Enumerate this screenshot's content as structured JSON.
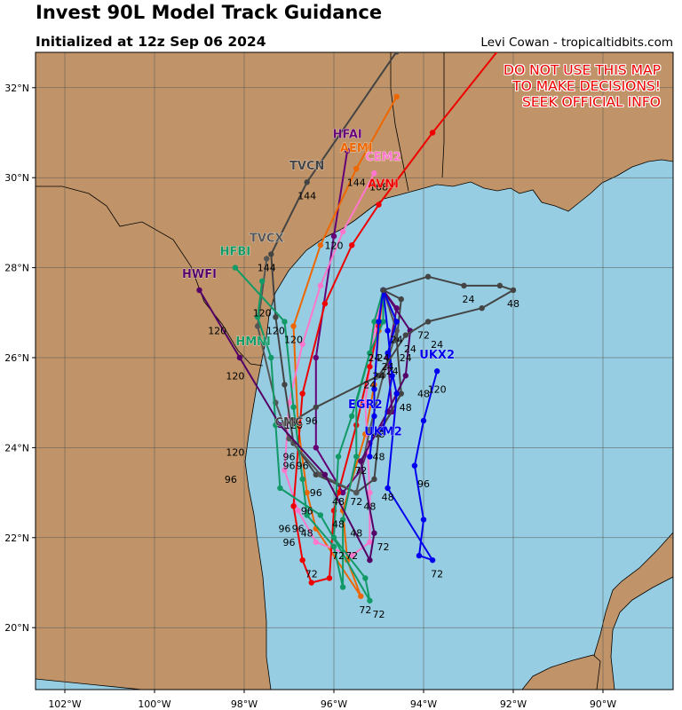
{
  "title": "Invest 90L Model Track Guidance",
  "subtitle": "Initialized at 12z Sep 06 2024",
  "credit": "Levi Cowan - tropicaltidbits.com",
  "warning": [
    "DO NOT USE THIS MAP",
    "TO MAKE DECISIONS!",
    "SEEK OFFICIAL INFO"
  ],
  "colors": {
    "land": "#c09468",
    "water": "#96cde2",
    "grid": "#555555"
  },
  "lat_labels": [
    {
      "lat": 32,
      "text": "32°N"
    },
    {
      "lat": 30,
      "text": "30°N"
    },
    {
      "lat": 28,
      "text": "28°N"
    },
    {
      "lat": 26,
      "text": "26°N"
    },
    {
      "lat": 24,
      "text": "24°N"
    },
    {
      "lat": 22,
      "text": "22°N"
    },
    {
      "lat": 20,
      "text": "20°N"
    }
  ],
  "lon_labels": [
    {
      "lon": -102,
      "text": "102°W"
    },
    {
      "lon": -100,
      "text": "100°W"
    },
    {
      "lon": -98,
      "text": "98°W"
    },
    {
      "lon": -96,
      "text": "96°W"
    },
    {
      "lon": -94,
      "text": "94°W"
    },
    {
      "lon": -92,
      "text": "92°W"
    },
    {
      "lon": -90,
      "text": "90°W"
    }
  ],
  "models": [
    {
      "name": "HFAI",
      "color": "#660077",
      "label_at": [
        30.8,
        -95.7
      ],
      "track": [
        [
          27.5,
          -94.9
        ],
        [
          27.1,
          -94.6
        ],
        [
          26.0,
          -94.8
        ],
        [
          24.8,
          -94.7
        ],
        [
          24.1,
          -95.2
        ],
        [
          23.5,
          -95.4
        ],
        [
          23.0,
          -95.8
        ],
        [
          24.0,
          -96.4
        ],
        [
          26.0,
          -96.4
        ],
        [
          28.7,
          -96.0
        ],
        [
          30.6,
          -95.7
        ]
      ],
      "hour_labels": []
    },
    {
      "name": "AEMI",
      "color": "#ee6600",
      "label_at": [
        30.5,
        -95.5
      ],
      "track": [
        [
          27.5,
          -94.9
        ],
        [
          26.6,
          -95.0
        ],
        [
          25.4,
          -95.1
        ],
        [
          24.3,
          -95.3
        ],
        [
          22.6,
          -95.8
        ],
        [
          21.5,
          -95.7
        ],
        [
          20.7,
          -95.4
        ],
        [
          22.2,
          -96.4
        ],
        [
          23.0,
          -96.6
        ],
        [
          24.5,
          -96.8
        ],
        [
          26.7,
          -96.9
        ],
        [
          28.5,
          -96.3
        ],
        [
          30.2,
          -95.5
        ],
        [
          31.8,
          -94.6
        ]
      ],
      "hour_labels": [
        {
          "h": "144",
          "at": [
            29.9,
            -95.5
          ]
        },
        {
          "h": "120",
          "at": [
            28.5,
            -96.0
          ]
        }
      ]
    },
    {
      "name": "CEM2",
      "color": "#ff77cc",
      "label_at": [
        30.3,
        -94.9
      ],
      "track": [
        [
          27.5,
          -94.9
        ],
        [
          26.6,
          -95.1
        ],
        [
          25.0,
          -95.3
        ],
        [
          23.0,
          -95.2
        ],
        [
          21.9,
          -95.2
        ],
        [
          21.6,
          -95.6
        ],
        [
          21.9,
          -96.4
        ],
        [
          22.6,
          -96.8
        ],
        [
          23.5,
          -97.1
        ],
        [
          25.0,
          -97.0
        ],
        [
          26.3,
          -96.7
        ],
        [
          27.6,
          -96.3
        ],
        [
          28.8,
          -95.8
        ],
        [
          30.1,
          -95.1
        ]
      ],
      "hour_labels": [
        {
          "h": "168",
          "at": [
            29.8,
            -95.0
          ]
        }
      ]
    },
    {
      "name": "AVNI",
      "color": "#ee0000",
      "label_at": [
        29.7,
        -94.9
      ],
      "track": [
        [
          27.5,
          -94.9
        ],
        [
          26.7,
          -95.0
        ],
        [
          25.8,
          -95.2
        ],
        [
          24.5,
          -95.5
        ],
        [
          23.0,
          -95.9
        ],
        [
          22.6,
          -96.0
        ],
        [
          21.1,
          -96.1
        ],
        [
          21.0,
          -96.5
        ],
        [
          21.5,
          -96.7
        ],
        [
          22.7,
          -96.9
        ],
        [
          25.2,
          -96.7
        ],
        [
          27.2,
          -96.2
        ],
        [
          28.5,
          -95.6
        ],
        [
          29.4,
          -95.0
        ],
        [
          31.0,
          -93.8
        ],
        [
          33.0,
          -92.2
        ]
      ],
      "hour_labels": []
    },
    {
      "name": "TVCN",
      "color": "#444444",
      "label_at": [
        30.1,
        -96.6
      ],
      "track": [
        [
          27.5,
          -94.9
        ],
        [
          27.3,
          -94.5
        ],
        [
          26.4,
          -94.6
        ],
        [
          25.2,
          -94.5
        ],
        [
          24.3,
          -95.0
        ],
        [
          23.3,
          -95.1
        ],
        [
          23.0,
          -95.5
        ],
        [
          23.4,
          -96.4
        ],
        [
          24.1,
          -96.9
        ],
        [
          25.4,
          -97.1
        ],
        [
          26.9,
          -97.3
        ],
        [
          28.3,
          -97.4
        ],
        [
          29.9,
          -96.6
        ],
        [
          32.8,
          -94.6
        ]
      ],
      "hour_labels": [
        {
          "h": "144",
          "at": [
            29.6,
            -96.6
          ]
        }
      ]
    },
    {
      "name": "TVCX",
      "color": "#555555",
      "label_at": [
        28.5,
        -97.5
      ],
      "track": [
        [
          27.5,
          -94.9
        ],
        [
          26.6,
          -94.6
        ],
        [
          25.6,
          -94.9
        ],
        [
          24.4,
          -95.2
        ],
        [
          23.0,
          -95.5
        ],
        [
          23.4,
          -96.3
        ],
        [
          24.2,
          -97.0
        ],
        [
          25.0,
          -97.3
        ],
        [
          26.7,
          -97.7
        ],
        [
          28.2,
          -97.5
        ]
      ],
      "hour_labels": [
        {
          "h": "144",
          "at": [
            28.0,
            -97.5
          ]
        }
      ]
    },
    {
      "name": "HFBI",
      "color": "#119966",
      "label_at": [
        28.2,
        -98.2
      ],
      "track": [
        [
          27.5,
          -94.9
        ],
        [
          26.8,
          -94.9
        ],
        [
          26.1,
          -95.2
        ],
        [
          25.0,
          -95.5
        ],
        [
          23.8,
          -95.5
        ],
        [
          22.4,
          -95.8
        ],
        [
          20.9,
          -95.8
        ],
        [
          21.8,
          -96.0
        ],
        [
          22.5,
          -96.6
        ],
        [
          23.3,
          -96.7
        ],
        [
          24.9,
          -96.9
        ],
        [
          26.8,
          -97.1
        ],
        [
          28.0,
          -98.2
        ]
      ],
      "hour_labels": []
    },
    {
      "name": "HMNI",
      "color": "#119966",
      "label_at": [
        26.2,
        -97.8
      ],
      "track": [
        [
          27.5,
          -94.9
        ],
        [
          26.8,
          -95.1
        ],
        [
          26.1,
          -95.2
        ],
        [
          24.7,
          -95.6
        ],
        [
          23.8,
          -95.9
        ],
        [
          22.0,
          -96.0
        ],
        [
          21.1,
          -95.3
        ],
        [
          20.6,
          -95.2
        ],
        [
          22.5,
          -96.3
        ],
        [
          23.1,
          -97.2
        ],
        [
          24.5,
          -97.3
        ],
        [
          26.0,
          -97.4
        ],
        [
          26.9,
          -97.7
        ],
        [
          27.7,
          -97.6
        ]
      ],
      "hour_labels": []
    },
    {
      "name": "HWFI",
      "color": "#550066",
      "label_at": [
        27.7,
        -99.0
      ],
      "track": [
        [
          27.5,
          -94.9
        ],
        [
          26.6,
          -94.3
        ],
        [
          25.6,
          -94.4
        ],
        [
          24.8,
          -94.8
        ],
        [
          23.7,
          -95.4
        ],
        [
          22.1,
          -95.1
        ],
        [
          21.5,
          -95.2
        ],
        [
          23.4,
          -96.2
        ],
        [
          24.5,
          -97.2
        ],
        [
          26.0,
          -98.1
        ],
        [
          27.5,
          -99.0
        ]
      ],
      "hour_labels": []
    },
    {
      "name": "UKX2",
      "color": "#0000ee",
      "label_at": [
        25.9,
        -93.7
      ],
      "track": [
        [
          27.5,
          -94.9
        ],
        [
          26.8,
          -94.6
        ],
        [
          26.1,
          -94.8
        ],
        [
          25.2,
          -94.6
        ],
        [
          23.1,
          -94.8
        ],
        [
          21.5,
          -93.8
        ],
        [
          21.6,
          -94.1
        ],
        [
          22.4,
          -94.0
        ],
        [
          23.6,
          -94.2
        ],
        [
          24.6,
          -94.0
        ],
        [
          25.7,
          -93.7
        ]
      ],
      "hour_labels": [
        {
          "h": "120",
          "at": [
            25.3,
            -93.7
          ]
        }
      ]
    },
    {
      "name": "EGR2",
      "color": "#0000ee",
      "label_at": [
        24.8,
        -95.3
      ],
      "track": [
        [
          27.5,
          -94.9
        ],
        [
          26.8,
          -95.0
        ],
        [
          25.3,
          -95.1
        ],
        [
          24.7,
          -95.1
        ],
        [
          23.8,
          -95.2
        ]
      ],
      "hour_labels": []
    },
    {
      "name": "UKM2",
      "color": "#0000ee",
      "label_at": [
        24.2,
        -94.9
      ],
      "track": [
        [
          27.5,
          -94.9
        ],
        [
          26.6,
          -94.8
        ],
        [
          25.6,
          -94.7
        ],
        [
          24.4,
          -94.9
        ]
      ],
      "hour_labels": []
    },
    {
      "name": "CMC",
      "color": "#444444",
      "label_at": [
        24.4,
        -97.0
      ],
      "track": [
        [
          27.5,
          -94.9
        ],
        [
          27.8,
          -93.9
        ],
        [
          27.6,
          -93.1
        ],
        [
          27.6,
          -92.3
        ],
        [
          27.5,
          -92.0
        ],
        [
          27.1,
          -92.7
        ],
        [
          26.8,
          -93.9
        ],
        [
          26.5,
          -94.4
        ],
        [
          25.6,
          -95.0
        ],
        [
          24.9,
          -96.4
        ],
        [
          24.6,
          -96.9
        ]
      ],
      "hour_labels": [
        {
          "h": "24",
          "at": [
            27.3,
            -93.0
          ]
        },
        {
          "h": "48",
          "at": [
            27.2,
            -92.0
          ]
        }
      ]
    }
  ],
  "misc_hour_labels": [
    {
      "h": "120",
      "at": [
        27.0,
        -97.6
      ]
    },
    {
      "h": "120",
      "at": [
        26.6,
        -98.6
      ]
    },
    {
      "h": "120",
      "at": [
        26.6,
        -97.3
      ]
    },
    {
      "h": "120",
      "at": [
        26.4,
        -96.9
      ]
    },
    {
      "h": "120",
      "at": [
        25.6,
        -98.2
      ]
    },
    {
      "h": "120",
      "at": [
        24.5,
        -96.9
      ]
    },
    {
      "h": "120",
      "at": [
        23.9,
        -98.2
      ]
    },
    {
      "h": "96",
      "at": [
        23.3,
        -98.3
      ]
    },
    {
      "h": "96",
      "at": [
        24.6,
        -96.5
      ]
    },
    {
      "h": "96",
      "at": [
        23.8,
        -97.0
      ]
    },
    {
      "h": "96",
      "at": [
        23.6,
        -97.0
      ]
    },
    {
      "h": "96",
      "at": [
        23.6,
        -96.7
      ]
    },
    {
      "h": "96",
      "at": [
        23.0,
        -96.4
      ]
    },
    {
      "h": "96",
      "at": [
        22.6,
        -96.6
      ]
    },
    {
      "h": "96",
      "at": [
        22.2,
        -97.1
      ]
    },
    {
      "h": "96",
      "at": [
        22.2,
        -96.8
      ]
    },
    {
      "h": "96",
      "at": [
        21.9,
        -97.0
      ]
    },
    {
      "h": "96",
      "at": [
        23.2,
        -94.0
      ]
    },
    {
      "h": "48",
      "at": [
        22.1,
        -96.6
      ]
    },
    {
      "h": "48",
      "at": [
        22.3,
        -95.9
      ]
    },
    {
      "h": "48",
      "at": [
        22.1,
        -95.5
      ]
    },
    {
      "h": "48",
      "at": [
        22.8,
        -95.9
      ]
    },
    {
      "h": "48",
      "at": [
        22.7,
        -95.2
      ]
    },
    {
      "h": "48",
      "at": [
        22.9,
        -94.8
      ]
    },
    {
      "h": "48",
      "at": [
        23.8,
        -95.0
      ]
    },
    {
      "h": "48",
      "at": [
        24.9,
        -94.4
      ]
    },
    {
      "h": "48",
      "at": [
        25.2,
        -94.0
      ]
    },
    {
      "h": "48",
      "at": [
        24.3,
        -95.0
      ]
    },
    {
      "h": "72",
      "at": [
        21.2,
        -96.5
      ]
    },
    {
      "h": "72",
      "at": [
        21.6,
        -95.9
      ]
    },
    {
      "h": "72",
      "at": [
        21.6,
        -95.6
      ]
    },
    {
      "h": "72",
      "at": [
        20.4,
        -95.3
      ]
    },
    {
      "h": "72",
      "at": [
        20.3,
        -95.0
      ]
    },
    {
      "h": "72",
      "at": [
        21.8,
        -94.9
      ]
    },
    {
      "h": "72",
      "at": [
        22.8,
        -95.5
      ]
    },
    {
      "h": "72",
      "at": [
        23.5,
        -95.4
      ]
    },
    {
      "h": "72",
      "at": [
        21.2,
        -93.7
      ]
    },
    {
      "h": "72",
      "at": [
        26.5,
        -94.0
      ]
    },
    {
      "h": "24",
      "at": [
        26.2,
        -94.3
      ]
    },
    {
      "h": "24",
      "at": [
        26.3,
        -93.7
      ]
    },
    {
      "h": "24",
      "at": [
        26.0,
        -94.4
      ]
    },
    {
      "h": "24",
      "at": [
        26.0,
        -95.1
      ]
    },
    {
      "h": "24",
      "at": [
        25.8,
        -94.8
      ]
    },
    {
      "h": "24",
      "at": [
        25.6,
        -95.0
      ]
    },
    {
      "h": "24",
      "at": [
        25.4,
        -95.2
      ]
    },
    {
      "h": "24",
      "at": [
        26.4,
        -94.6
      ]
    },
    {
      "h": "24",
      "at": [
        26.0,
        -94.9
      ]
    },
    {
      "h": "24",
      "at": [
        25.7,
        -94.7
      ]
    }
  ]
}
